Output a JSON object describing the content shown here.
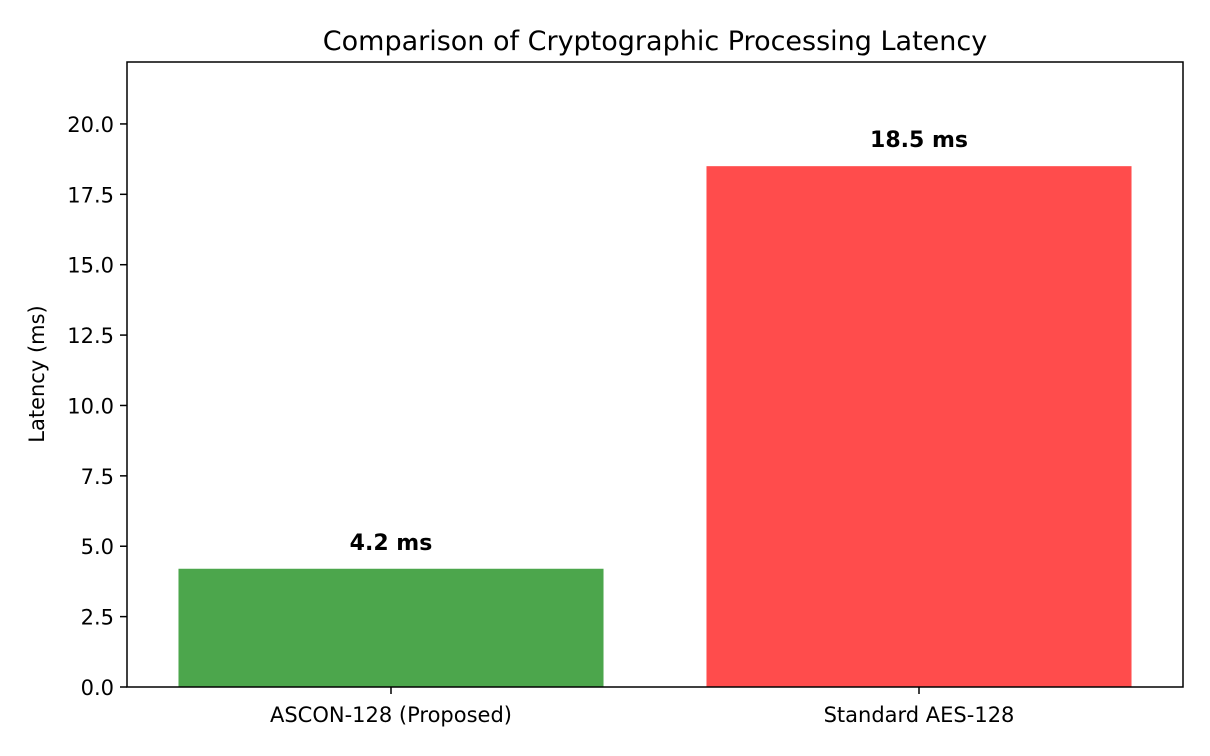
{
  "chart_data": {
    "type": "bar",
    "title": "Comparison of Cryptographic Processing Latency",
    "xlabel": "",
    "ylabel": "Latency (ms)",
    "categories": [
      "ASCON-128 (Proposed)",
      "Standard AES-128"
    ],
    "values": [
      4.2,
      18.5
    ],
    "data_labels": [
      "4.2 ms",
      "18.5 ms"
    ],
    "colors": [
      "#4ca64c",
      "#ff4c4c"
    ],
    "ylim": [
      0,
      22.2
    ],
    "yticks": [
      0.0,
      2.5,
      5.0,
      7.5,
      10.0,
      12.5,
      15.0,
      17.5,
      20.0
    ],
    "ytick_labels": [
      "0.0",
      "2.5",
      "5.0",
      "7.5",
      "10.0",
      "12.5",
      "15.0",
      "17.5",
      "20.0"
    ],
    "grid": false,
    "legend": "none"
  }
}
